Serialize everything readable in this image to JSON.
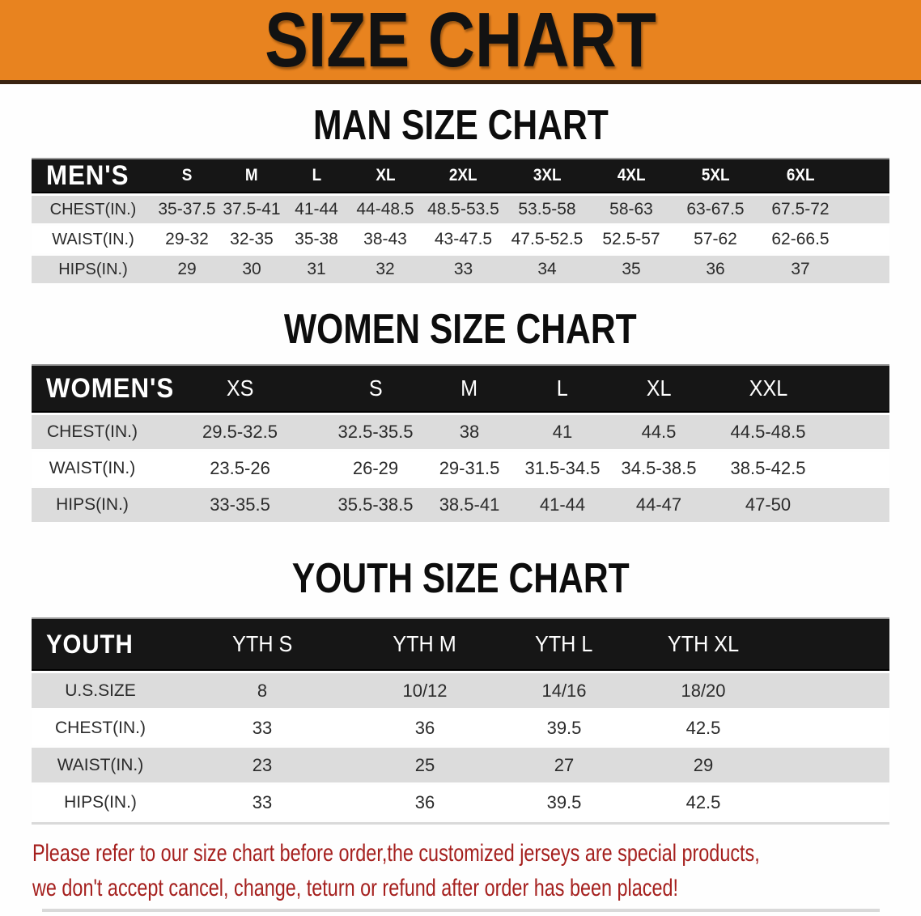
{
  "banner": {
    "title": "SIZE CHART",
    "bg_color": "#E8831F",
    "edge_color": "#3A2310"
  },
  "sections": [
    {
      "heading": "MAN SIZE CHART",
      "table": {
        "corner": "MEN'S",
        "columns": [
          "S",
          "M",
          "L",
          "XL",
          "2XL",
          "3XL",
          "4XL",
          "5XL",
          "6XL"
        ],
        "rows": [
          {
            "label": "CHEST(IN.)",
            "values": [
              "35-37.5",
              "37.5-41",
              "41-44",
              "44-48.5",
              "48.5-53.5",
              "53.5-58",
              "58-63",
              "63-67.5",
              "67.5-72"
            ]
          },
          {
            "label": "WAIST(IN.)",
            "values": [
              "29-32",
              "32-35",
              "35-38",
              "38-43",
              "43-47.5",
              "47.5-52.5",
              "52.5-57",
              "57-62",
              "62-66.5"
            ]
          },
          {
            "label": "HIPS(IN.)",
            "values": [
              "29",
              "30",
              "31",
              "32",
              "33",
              "34",
              "35",
              "36",
              "37"
            ]
          }
        ]
      }
    },
    {
      "heading": "WOMEN SIZE CHART",
      "table": {
        "corner": "WOMEN'S",
        "columns": [
          "XS",
          "S",
          "M",
          "L",
          "XL",
          "XXL"
        ],
        "rows": [
          {
            "label": "CHEST(IN.)",
            "values": [
              "29.5-32.5",
              "32.5-35.5",
              "38",
              "41",
              "44.5",
              "44.5-48.5"
            ]
          },
          {
            "label": "WAIST(IN.)",
            "values": [
              "23.5-26",
              "26-29",
              "29-31.5",
              "31.5-34.5",
              "34.5-38.5",
              "38.5-42.5"
            ]
          },
          {
            "label": "HIPS(IN.)",
            "values": [
              "33-35.5",
              "35.5-38.5",
              "38.5-41",
              "41-44",
              "44-47",
              "47-50"
            ]
          }
        ]
      }
    },
    {
      "heading": "YOUTH SIZE CHART",
      "table": {
        "corner": "YOUTH",
        "columns": [
          "YTH S",
          "YTH M",
          "YTH L",
          "YTH XL"
        ],
        "rows": [
          {
            "label": "U.S.SIZE",
            "values": [
              "8",
              "10/12",
              "14/16",
              "18/20"
            ]
          },
          {
            "label": "CHEST(IN.)",
            "values": [
              "33",
              "36",
              "39.5",
              "42.5"
            ]
          },
          {
            "label": "WAIST(IN.)",
            "values": [
              "23",
              "25",
              "27",
              "29"
            ]
          },
          {
            "label": "HIPS(IN.)",
            "values": [
              "33",
              "36",
              "39.5",
              "42.5"
            ]
          }
        ]
      }
    }
  ],
  "footer": {
    "line1": "Please refer to our size chart before order,the customized jerseys are special products,",
    "line2": "we don't accept cancel, change, teturn or refund after order has been placed!",
    "text_color": "#A5201E"
  },
  "colors": {
    "header_bar": "#161616",
    "row_gray": "#DCDCDC",
    "row_white": "#FFFFFF"
  }
}
